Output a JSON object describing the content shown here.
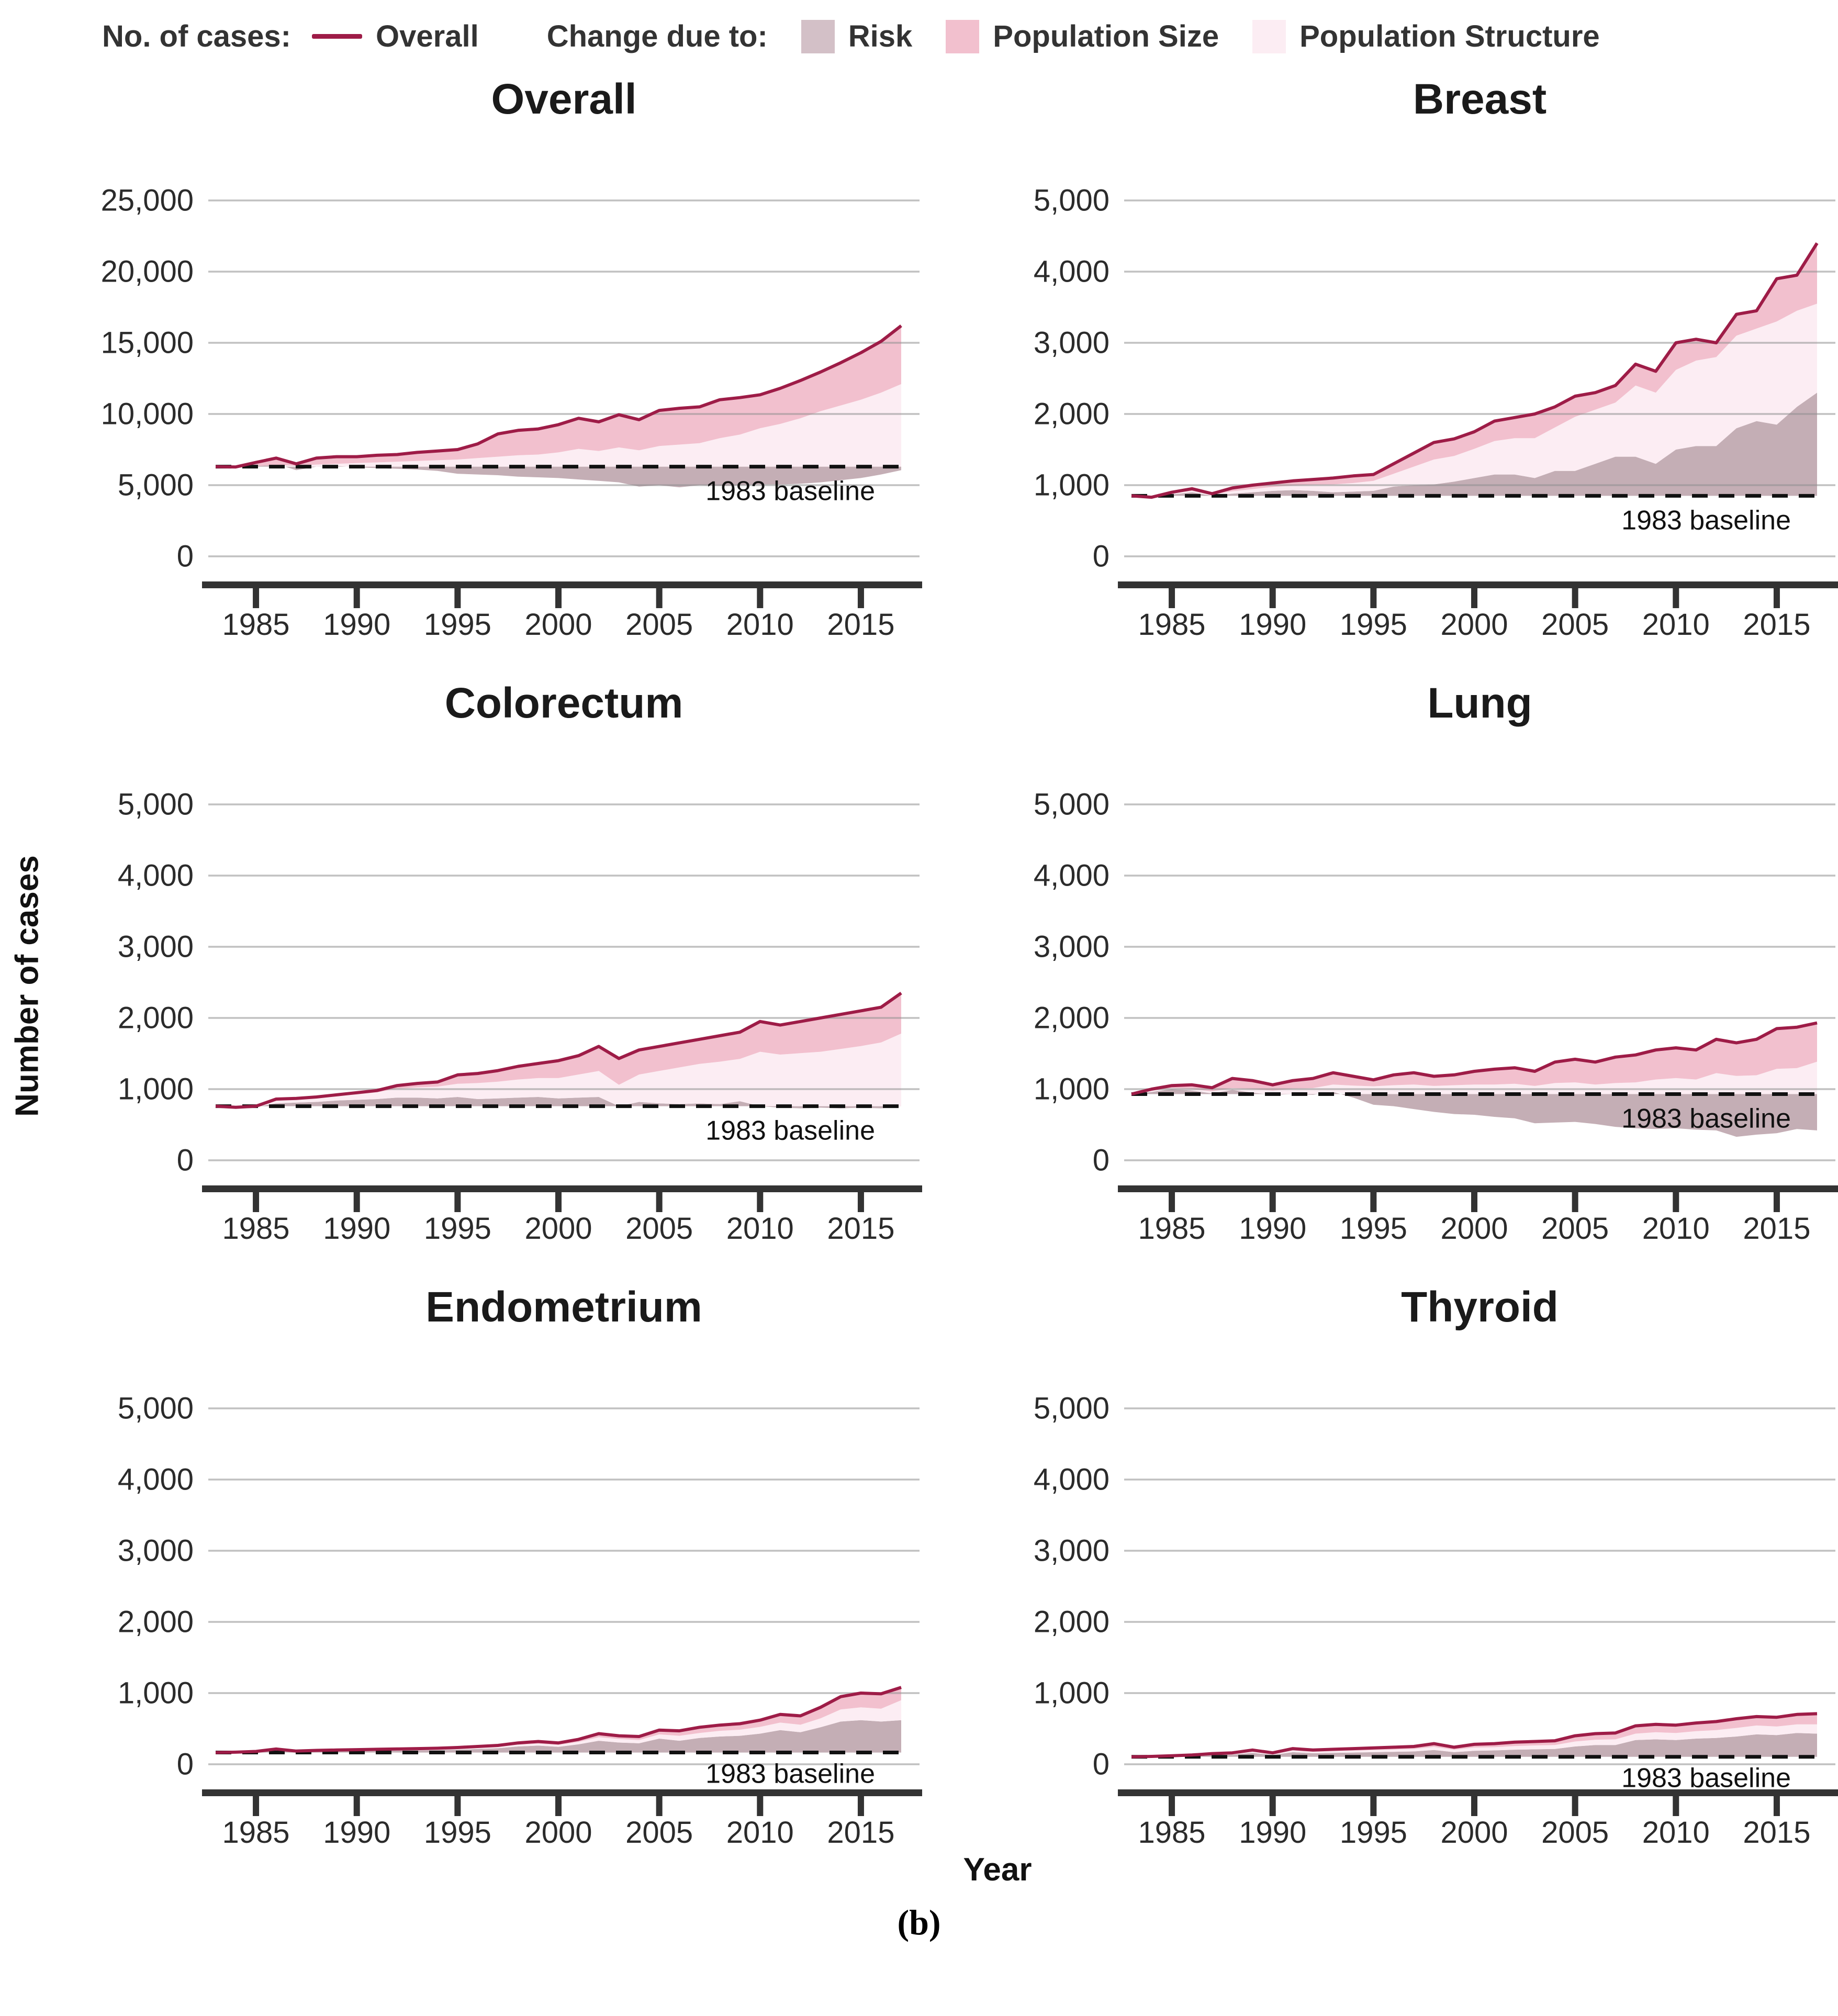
{
  "figure": {
    "caption": "(b)",
    "x_axis_title": "Year",
    "y_axis_title": "Number of cases",
    "baseline_label": "1983 baseline"
  },
  "legend": {
    "cases_label": "No. of cases:",
    "overall_label": "Overall",
    "change_label": "Change due to:",
    "items": [
      "Risk",
      "Population Size",
      "Population Structure"
    ]
  },
  "colors": {
    "overall_line": "#9e1c47",
    "risk_fill": "#c4aeb5",
    "risk_legend": "#d3c0c7",
    "population_size_fill": "#f2c0ce",
    "population_structure_fill": "#fcedf3",
    "gridline": "#8f8f8f",
    "axis": "#333333",
    "baseline_dash": "#111111"
  },
  "chart_data": [
    {
      "type": "area",
      "title": "Overall",
      "ylim": [
        0,
        25000
      ],
      "yticks": [
        0,
        5000,
        10000,
        15000,
        20000,
        25000
      ],
      "xticks": [
        1985,
        1990,
        1995,
        2000,
        2005,
        2010,
        2015
      ],
      "baseline": 6300,
      "baseline_annotation": "1983 baseline",
      "x": [
        1983,
        1984,
        1985,
        1986,
        1987,
        1988,
        1989,
        1990,
        1991,
        1992,
        1993,
        1994,
        1995,
        1996,
        1997,
        1998,
        1999,
        2000,
        2001,
        2002,
        2003,
        2004,
        2005,
        2006,
        2007,
        2008,
        2009,
        2010,
        2011,
        2012,
        2013,
        2014,
        2015,
        2016,
        2017
      ],
      "series": {
        "overall": [
          6300,
          6280,
          6600,
          6900,
          6500,
          6900,
          7000,
          7000,
          7100,
          7150,
          7300,
          7400,
          7500,
          7900,
          8600,
          8850,
          8950,
          9250,
          9700,
          9450,
          9950,
          9600,
          10250,
          10400,
          10500,
          11000,
          11150,
          11350,
          11800,
          12350,
          12950,
          13600,
          14300,
          15100,
          16200
        ],
        "risk_edge": [
          6300,
          6200,
          6350,
          6500,
          6050,
          6300,
          6350,
          6250,
          6200,
          6150,
          6100,
          6000,
          5800,
          5750,
          5700,
          5600,
          5550,
          5500,
          5400,
          5300,
          5200,
          4900,
          5000,
          4850,
          5000,
          4950,
          5000,
          5050,
          5050,
          5100,
          5200,
          5350,
          5500,
          5750,
          6050
        ],
        "structure_top": [
          6300,
          6280,
          6350,
          6420,
          6350,
          6450,
          6500,
          6550,
          6600,
          6650,
          6700,
          6750,
          6800,
          6900,
          7000,
          7100,
          7150,
          7300,
          7550,
          7400,
          7650,
          7450,
          7750,
          7850,
          7950,
          8300,
          8550,
          9000,
          9300,
          9700,
          10200,
          10600,
          11000,
          11500,
          12100
        ]
      }
    },
    {
      "type": "area",
      "title": "Breast",
      "ylim": [
        0,
        5000
      ],
      "yticks": [
        0,
        1000,
        2000,
        3000,
        4000,
        5000
      ],
      "xticks": [
        1985,
        1990,
        1995,
        2000,
        2005,
        2010,
        2015
      ],
      "baseline": 850,
      "baseline_annotation": "1983 baseline",
      "x": [
        1983,
        1984,
        1985,
        1986,
        1987,
        1988,
        1989,
        1990,
        1991,
        1992,
        1993,
        1994,
        1995,
        1996,
        1997,
        1998,
        1999,
        2000,
        2001,
        2002,
        2003,
        2004,
        2005,
        2006,
        2007,
        2008,
        2009,
        2010,
        2011,
        2012,
        2013,
        2014,
        2015,
        2016,
        2017
      ],
      "series": {
        "overall": [
          850,
          830,
          900,
          950,
          880,
          960,
          1000,
          1030,
          1060,
          1080,
          1100,
          1130,
          1150,
          1300,
          1450,
          1600,
          1650,
          1750,
          1900,
          1950,
          2000,
          2100,
          2250,
          2300,
          2400,
          2700,
          2600,
          3000,
          3050,
          3000,
          3400,
          3450,
          3900,
          3950,
          4400
        ],
        "risk_edge": [
          850,
          840,
          870,
          900,
          850,
          880,
          900,
          920,
          930,
          920,
          900,
          910,
          920,
          980,
          1000,
          1010,
          1050,
          1100,
          1150,
          1150,
          1100,
          1200,
          1200,
          1300,
          1400,
          1400,
          1300,
          1500,
          1550,
          1550,
          1800,
          1900,
          1850,
          2100,
          2300
        ],
        "structure_top": [
          850,
          845,
          885,
          920,
          870,
          915,
          945,
          975,
          995,
          1005,
          1010,
          1030,
          1060,
          1160,
          1260,
          1360,
          1410,
          1510,
          1620,
          1660,
          1660,
          1810,
          1960,
          2060,
          2160,
          2400,
          2300,
          2620,
          2750,
          2800,
          3100,
          3200,
          3300,
          3450,
          3550
        ]
      }
    },
    {
      "type": "area",
      "title": "Colorectum",
      "ylim": [
        0,
        5000
      ],
      "yticks": [
        0,
        1000,
        2000,
        3000,
        4000,
        5000
      ],
      "xticks": [
        1985,
        1990,
        1995,
        2000,
        2005,
        2010,
        2015
      ],
      "baseline": 760,
      "baseline_annotation": "1983 baseline",
      "x": [
        1983,
        1984,
        1985,
        1986,
        1987,
        1988,
        1989,
        1990,
        1991,
        1992,
        1993,
        1994,
        1995,
        1996,
        1997,
        1998,
        1999,
        2000,
        2001,
        2002,
        2003,
        2004,
        2005,
        2006,
        2007,
        2008,
        2009,
        2010,
        2011,
        2012,
        2013,
        2014,
        2015,
        2016,
        2017
      ],
      "series": {
        "overall": [
          760,
          745,
          760,
          860,
          870,
          890,
          920,
          950,
          980,
          1050,
          1080,
          1100,
          1200,
          1220,
          1260,
          1320,
          1360,
          1400,
          1470,
          1600,
          1430,
          1550,
          1600,
          1650,
          1700,
          1750,
          1800,
          1950,
          1900,
          1950,
          2000,
          2050,
          2100,
          2150,
          2350
        ],
        "risk_edge": [
          760,
          740,
          750,
          800,
          810,
          820,
          840,
          850,
          860,
          880,
          880,
          870,
          890,
          860,
          870,
          880,
          890,
          870,
          880,
          890,
          760,
          820,
          800,
          790,
          800,
          790,
          830,
          760,
          740,
          730,
          740,
          730,
          740,
          730,
          760
        ],
        "structure_top": [
          760,
          750,
          775,
          835,
          855,
          875,
          905,
          925,
          955,
          1005,
          1025,
          1035,
          1075,
          1085,
          1105,
          1135,
          1155,
          1155,
          1205,
          1255,
          1060,
          1205,
          1255,
          1305,
          1355,
          1385,
          1425,
          1525,
          1485,
          1505,
          1525,
          1565,
          1605,
          1655,
          1780
        ]
      }
    },
    {
      "type": "area",
      "title": "Lung",
      "ylim": [
        0,
        5000
      ],
      "yticks": [
        0,
        1000,
        2000,
        3000,
        4000,
        5000
      ],
      "xticks": [
        1985,
        1990,
        1995,
        2000,
        2005,
        2010,
        2015
      ],
      "baseline": 930,
      "baseline_annotation": "1983 baseline",
      "x": [
        1983,
        1984,
        1985,
        1986,
        1987,
        1988,
        1989,
        1990,
        1991,
        1992,
        1993,
        1994,
        1995,
        1996,
        1997,
        1998,
        1999,
        2000,
        2001,
        2002,
        2003,
        2004,
        2005,
        2006,
        2007,
        2008,
        2009,
        2010,
        2011,
        2012,
        2013,
        2014,
        2015,
        2016,
        2017
      ],
      "series": {
        "overall": [
          930,
          1000,
          1050,
          1060,
          1020,
          1150,
          1120,
          1060,
          1120,
          1150,
          1230,
          1180,
          1130,
          1200,
          1230,
          1180,
          1200,
          1250,
          1280,
          1300,
          1250,
          1380,
          1420,
          1380,
          1450,
          1480,
          1550,
          1580,
          1550,
          1700,
          1650,
          1700,
          1850,
          1870,
          1930
        ],
        "risk_edge": [
          930,
          960,
          1000,
          980,
          940,
          990,
          950,
          920,
          930,
          920,
          960,
          880,
          780,
          760,
          720,
          680,
          650,
          640,
          610,
          590,
          520,
          530,
          540,
          510,
          470,
          450,
          440,
          450,
          430,
          420,
          330,
          360,
          380,
          440,
          420
        ],
        "structure_top": [
          930,
          980,
          1015,
          1000,
          970,
          1015,
          1000,
          980,
          1005,
          1015,
          1065,
          1050,
          1040,
          1055,
          1065,
          1045,
          1055,
          1065,
          1065,
          1075,
          1045,
          1085,
          1095,
          1065,
          1085,
          1095,
          1135,
          1155,
          1135,
          1225,
          1185,
          1195,
          1285,
          1295,
          1385
        ]
      }
    },
    {
      "type": "area",
      "title": "Endometrium",
      "ylim": [
        0,
        5000
      ],
      "yticks": [
        0,
        1000,
        2000,
        3000,
        4000,
        5000
      ],
      "xticks": [
        1985,
        1990,
        1995,
        2000,
        2005,
        2010,
        2015
      ],
      "baseline": 165,
      "baseline_annotation": "1983 baseline",
      "x": [
        1983,
        1984,
        1985,
        1986,
        1987,
        1988,
        1989,
        1990,
        1991,
        1992,
        1993,
        1994,
        1995,
        1996,
        1997,
        1998,
        1999,
        2000,
        2001,
        2002,
        2003,
        2004,
        2005,
        2006,
        2007,
        2008,
        2009,
        2010,
        2011,
        2012,
        2013,
        2014,
        2015,
        2016,
        2017
      ],
      "series": {
        "overall": [
          165,
          170,
          180,
          215,
          185,
          195,
          200,
          205,
          210,
          215,
          220,
          225,
          235,
          250,
          265,
          300,
          320,
          300,
          350,
          430,
          400,
          390,
          480,
          470,
          520,
          550,
          570,
          620,
          700,
          680,
          800,
          950,
          1000,
          990,
          1080
        ],
        "risk_edge": [
          165,
          168,
          172,
          195,
          175,
          180,
          185,
          188,
          190,
          192,
          195,
          198,
          205,
          215,
          225,
          250,
          262,
          245,
          280,
          330,
          305,
          295,
          360,
          330,
          370,
          390,
          400,
          430,
          480,
          450,
          520,
          600,
          620,
          600,
          620
        ],
        "structure_top": [
          165,
          170,
          176,
          205,
          180,
          188,
          193,
          197,
          200,
          205,
          210,
          216,
          222,
          235,
          248,
          275,
          290,
          272,
          315,
          380,
          355,
          340,
          420,
          400,
          440,
          470,
          485,
          525,
          585,
          555,
          645,
          770,
          800,
          780,
          900
        ]
      }
    },
    {
      "type": "area",
      "title": "Thyroid",
      "ylim": [
        0,
        5000
      ],
      "yticks": [
        0,
        1000,
        2000,
        3000,
        4000,
        5000
      ],
      "xticks": [
        1985,
        1990,
        1995,
        2000,
        2005,
        2010,
        2015
      ],
      "baseline": 105,
      "baseline_annotation": "1983 baseline",
      "x": [
        1983,
        1984,
        1985,
        1986,
        1987,
        1988,
        1989,
        1990,
        1991,
        1992,
        1993,
        1994,
        1995,
        1996,
        1997,
        1998,
        1999,
        2000,
        2001,
        2002,
        2003,
        2004,
        2005,
        2006,
        2007,
        2008,
        2009,
        2010,
        2011,
        2012,
        2013,
        2014,
        2015,
        2016,
        2017
      ],
      "series": {
        "overall": [
          105,
          110,
          120,
          130,
          150,
          160,
          200,
          160,
          220,
          200,
          210,
          220,
          230,
          240,
          250,
          290,
          240,
          280,
          290,
          310,
          320,
          330,
          400,
          430,
          440,
          540,
          560,
          550,
          580,
          600,
          640,
          670,
          660,
          700,
          710
        ],
        "risk_edge": [
          105,
          107,
          112,
          118,
          130,
          135,
          160,
          130,
          170,
          155,
          160,
          165,
          170,
          175,
          180,
          200,
          170,
          190,
          195,
          205,
          210,
          215,
          250,
          270,
          270,
          340,
          350,
          340,
          360,
          370,
          390,
          420,
          410,
          440,
          430
        ],
        "structure_top": [
          105,
          108,
          116,
          124,
          140,
          147,
          180,
          145,
          195,
          175,
          185,
          192,
          200,
          208,
          215,
          245,
          205,
          235,
          240,
          255,
          265,
          270,
          320,
          345,
          350,
          430,
          450,
          440,
          465,
          480,
          510,
          545,
          530,
          560,
          560
        ]
      }
    }
  ]
}
